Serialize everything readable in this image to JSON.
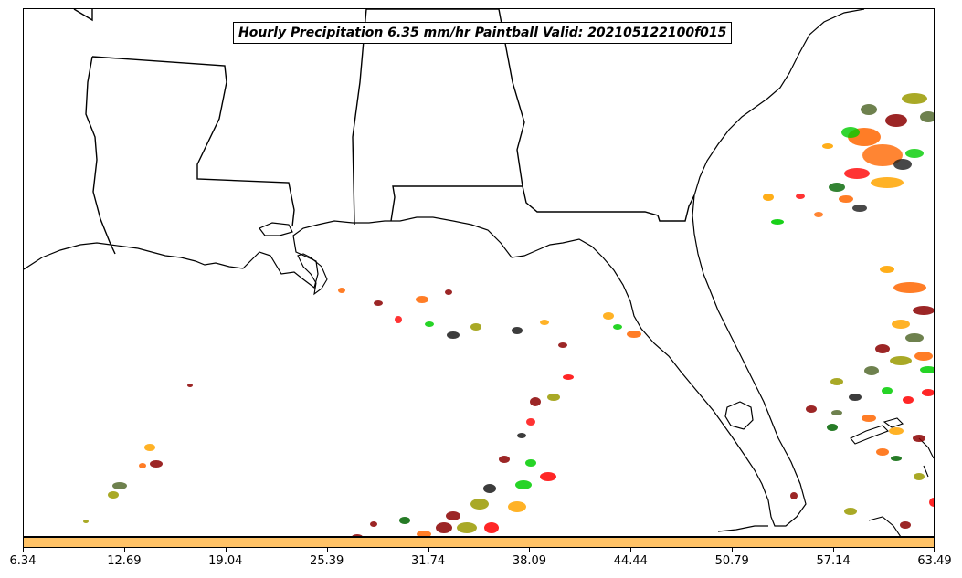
{
  "title": "Hourly Precipitation 6.35 mm/hr Paintball Valid: 202105122100f015",
  "colorbar": {
    "color": "#ffc266",
    "ticks": [
      "6.34",
      "12.69",
      "19.04",
      "25.39",
      "31.74",
      "38.09",
      "44.44",
      "50.79",
      "57.14",
      "63.49"
    ]
  },
  "member_colors": [
    "#8b0000",
    "#ff0000",
    "#ff6600",
    "#ffa500",
    "#00cc00",
    "#006400",
    "#9a9a00",
    "#556b2f",
    "#1a1a1a"
  ],
  "map_region": "US Gulf Coast and Southeast"
}
